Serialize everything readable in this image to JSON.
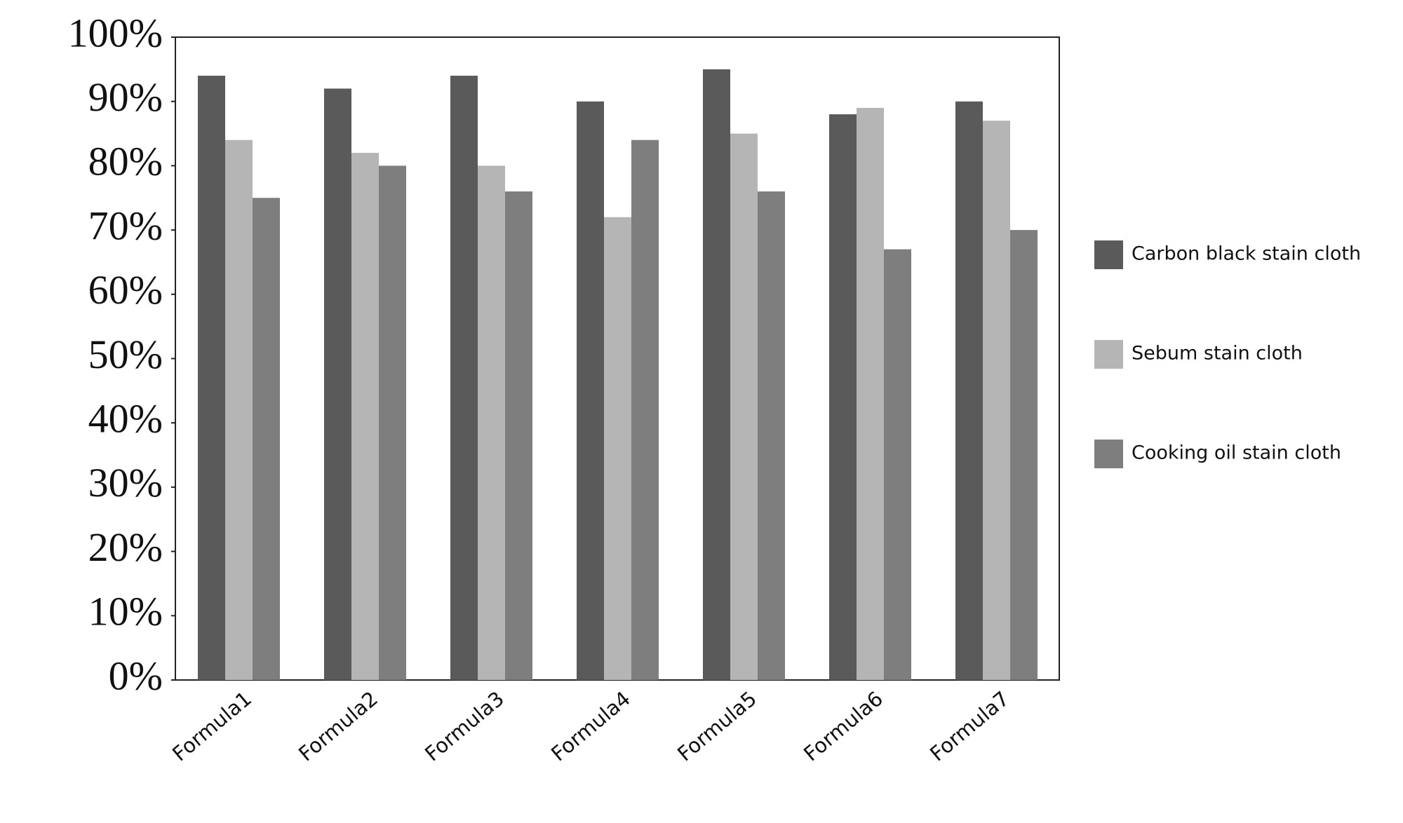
{
  "chart_data": {
    "type": "bar",
    "categories": [
      "Formula1",
      "Formula2",
      "Formula3",
      "Formula4",
      "Formula5",
      "Formula6",
      "Formula7"
    ],
    "series": [
      {
        "name": "Carbon black stain cloth",
        "color": "#5a5a5a",
        "values": [
          94,
          92,
          94,
          90,
          95,
          88,
          90
        ]
      },
      {
        "name": "Sebum stain cloth",
        "color": "#b5b5b5",
        "values": [
          84,
          82,
          80,
          72,
          85,
          89,
          87
        ]
      },
      {
        "name": "Cooking oil stain cloth",
        "color": "#7e7e7e",
        "values": [
          75,
          80,
          76,
          84,
          76,
          67,
          70
        ]
      }
    ],
    "ylim": [
      0,
      100
    ],
    "yticks": [
      {
        "value": 0,
        "label": "0%"
      },
      {
        "value": 10,
        "label": "10%"
      },
      {
        "value": 20,
        "label": "20%"
      },
      {
        "value": 30,
        "label": "30%"
      },
      {
        "value": 40,
        "label": "40%"
      },
      {
        "value": 50,
        "label": "50%"
      },
      {
        "value": 60,
        "label": "60%"
      },
      {
        "value": 70,
        "label": "70%"
      },
      {
        "value": 80,
        "label": "80%"
      },
      {
        "value": 90,
        "label": "90%"
      },
      {
        "value": 100,
        "label": "100%"
      }
    ],
    "grid": false,
    "legend": "right"
  }
}
